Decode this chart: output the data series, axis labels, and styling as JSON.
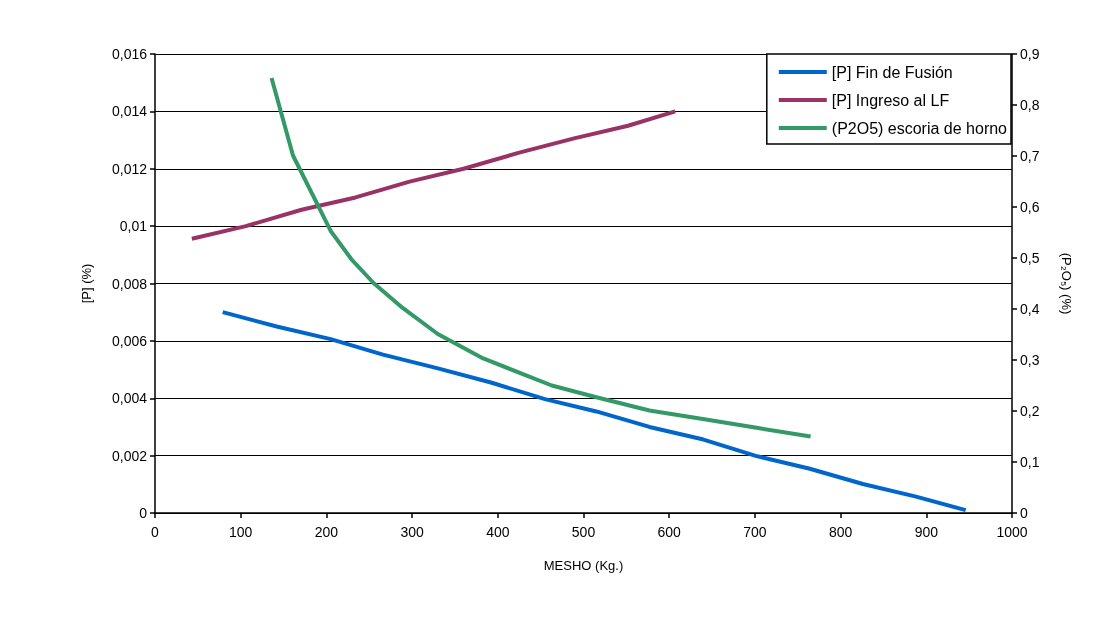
{
  "chart_data": {
    "type": "line",
    "xlabel": "MESHO (Kg.)",
    "ylabel": "[P] (%)",
    "y2label": "(P₂O₅) (%)",
    "series": [
      {
        "name": "[P] Fin de Fusión",
        "color": "#0066cc",
        "x": [
          79,
          142,
          205,
          266,
          329,
          392,
          455,
          515,
          577,
          640,
          701,
          763,
          826,
          888,
          946
        ],
        "values": [
          0.007,
          0.0065,
          0.00606,
          0.00552,
          0.00505,
          0.00455,
          0.00397,
          0.00354,
          0.003,
          0.00256,
          0.00199,
          0.00155,
          0.00101,
          0.00057,
          0.0001
        ]
      },
      {
        "name": "[P] Ingreso al LF",
        "color": "#993366",
        "x": [
          43,
          106,
          171,
          234,
          297,
          360,
          425,
          489,
          552,
          607
        ],
        "values": [
          0.00956,
          0.01,
          0.01057,
          0.011,
          0.01155,
          0.012,
          0.01256,
          0.01306,
          0.0135,
          0.014
        ]
      },
      {
        "name": "(P2O5) escoria de horno",
        "color": "#339966",
        "axis": "y2",
        "x": [
          136,
          161,
          205,
          229,
          255,
          289,
          330,
          383,
          463,
          515,
          577,
          641,
          702,
          765
        ],
        "values": [
          0.853,
          0.701,
          0.553,
          0.498,
          0.451,
          0.402,
          0.351,
          0.303,
          0.25,
          0.227,
          0.201,
          0.184,
          0.167,
          0.15
        ]
      }
    ],
    "xlim": [
      0,
      1000
    ],
    "xticks": [
      0,
      100,
      200,
      300,
      400,
      500,
      600,
      700,
      800,
      900,
      1000
    ],
    "ylim": [
      0,
      0.016
    ],
    "yticks": [
      0,
      {
        "value": 0.002,
        "label": "0,002"
      },
      {
        "value": 0.004,
        "label": "0,004"
      },
      {
        "value": 0.006,
        "label": "0,006"
      },
      {
        "value": 0.008,
        "label": "0,008"
      },
      {
        "value": 0.01,
        "label": "0,01"
      },
      {
        "value": 0.012,
        "label": "0,012"
      },
      {
        "value": 0.014,
        "label": "0,014"
      },
      {
        "value": 0.016,
        "label": "0,016"
      }
    ],
    "y2lim": [
      0,
      0.9
    ],
    "y2ticks": [
      0,
      {
        "value": 0.1,
        "label": "0,1"
      },
      {
        "value": 0.2,
        "label": "0,2"
      },
      {
        "value": 0.3,
        "label": "0,3"
      },
      {
        "value": 0.4,
        "label": "0,4"
      },
      {
        "value": 0.5,
        "label": "0,5"
      },
      {
        "value": 0.6,
        "label": "0,6"
      },
      {
        "value": 0.7,
        "label": "0,7"
      },
      {
        "value": 0.8,
        "label": "0,8"
      },
      {
        "value": 0.9,
        "label": "0,9"
      }
    ],
    "grid": "y",
    "legend": "top right",
    "marker": "none",
    "line_style": "solid"
  }
}
